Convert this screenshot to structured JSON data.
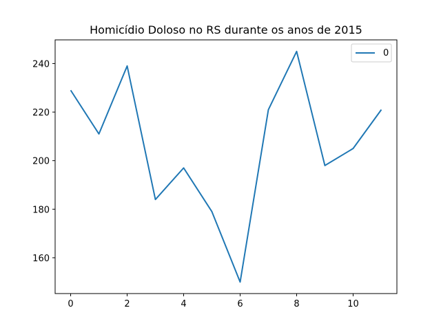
{
  "chart_data": {
    "type": "line",
    "title": "Homicídio Doloso no RS durante os anos de 2015",
    "xlabel": "",
    "ylabel": "",
    "x": [
      0,
      1,
      2,
      3,
      4,
      5,
      6,
      7,
      8,
      9,
      10,
      11
    ],
    "series": [
      {
        "name": "0",
        "values": [
          229,
          211,
          239,
          184,
          197,
          179,
          150,
          221,
          245,
          198,
          205,
          221
        ],
        "color": "#1f77b4"
      }
    ],
    "xlim": [
      -0.55,
      11.55
    ],
    "ylim": [
      145.25,
      249.75
    ],
    "xticks": [
      0,
      2,
      4,
      6,
      8,
      10
    ],
    "yticks": [
      160,
      180,
      200,
      220,
      240
    ],
    "grid": false,
    "legend_position": "top-right"
  }
}
